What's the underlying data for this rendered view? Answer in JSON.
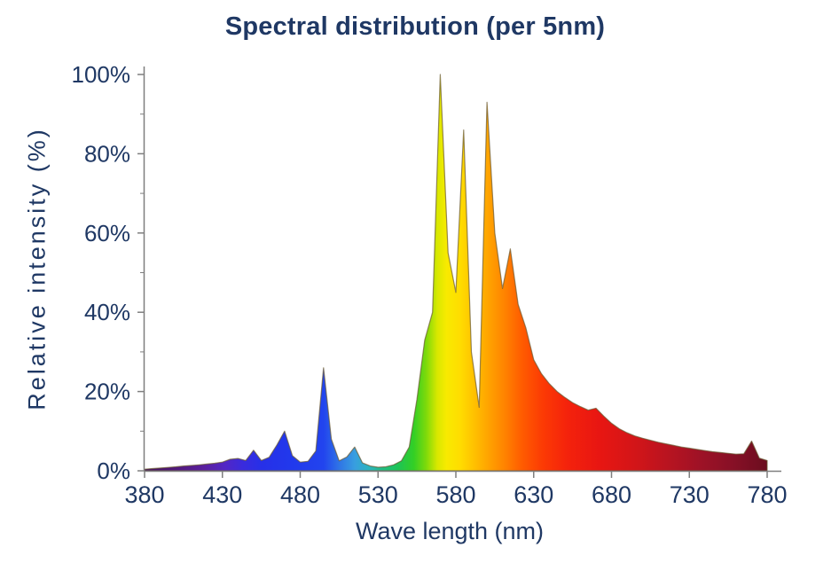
{
  "title": "Spectral distribution (per 5nm)",
  "x_axis": {
    "label": "Wave length (nm)",
    "ticks": [
      380,
      430,
      480,
      530,
      580,
      630,
      680,
      730,
      780
    ]
  },
  "y_axis": {
    "label": "Relative intensity (%)",
    "ticks": [
      "0%",
      "20%",
      "40%",
      "60%",
      "80%",
      "100%"
    ],
    "tick_values": [
      0,
      20,
      40,
      60,
      80,
      100
    ],
    "minor_ticks": [
      10,
      30,
      50,
      70,
      90
    ]
  },
  "colors": {
    "text": "#1F3864",
    "axis": "#7f7f7f",
    "outline": "rgba(105,88,48,0.7)"
  },
  "chart_data": {
    "type": "area",
    "title": "Spectral distribution (per 5nm)",
    "xlabel": "Wave length (nm)",
    "ylabel": "Relative intensity (%)",
    "xlim": [
      380,
      780
    ],
    "ylim": [
      0,
      100
    ],
    "grid": false,
    "legend": "none",
    "series_name": "Relative intensity per 5nm bin (%)",
    "x": [
      380,
      385,
      390,
      395,
      400,
      405,
      410,
      415,
      420,
      425,
      430,
      435,
      440,
      445,
      450,
      455,
      460,
      465,
      470,
      475,
      480,
      485,
      490,
      495,
      500,
      505,
      510,
      515,
      520,
      525,
      530,
      535,
      540,
      545,
      550,
      555,
      560,
      565,
      570,
      575,
      580,
      585,
      590,
      595,
      600,
      605,
      610,
      615,
      620,
      625,
      630,
      635,
      640,
      645,
      650,
      655,
      660,
      665,
      670,
      675,
      680,
      685,
      690,
      695,
      700,
      705,
      710,
      715,
      720,
      725,
      730,
      735,
      740,
      745,
      750,
      755,
      760,
      765,
      770,
      775,
      780
    ],
    "values": [
      0.4,
      0.55,
      0.7,
      0.85,
      1.0,
      1.2,
      1.35,
      1.5,
      1.7,
      1.9,
      2.2,
      2.9,
      3.1,
      2.6,
      5.2,
      2.6,
      3.4,
      6.5,
      10,
      3.8,
      2.2,
      2.4,
      5,
      26,
      8,
      2.5,
      3.5,
      6,
      2,
      1.2,
      0.9,
      1,
      1.5,
      2.5,
      6,
      18,
      33,
      40,
      100,
      55,
      45,
      86,
      30,
      16,
      93,
      60,
      46,
      56,
      42,
      36,
      28,
      24.5,
      22,
      20,
      18.5,
      17.2,
      16.2,
      15.3,
      15.8,
      13.8,
      12,
      10.6,
      9.6,
      8.8,
      8.2,
      7.7,
      7.2,
      6.8,
      6.4,
      6.0,
      5.7,
      5.4,
      5.1,
      4.8,
      4.6,
      4.4,
      4.2,
      4.3,
      7.5,
      3.2,
      2.6
    ],
    "peaks": [
      {
        "nm": 450,
        "pct": 5.2
      },
      {
        "nm": 470,
        "pct": 10
      },
      {
        "nm": 495,
        "pct": 26
      },
      {
        "nm": 515,
        "pct": 6
      },
      {
        "nm": 570,
        "pct": 100
      },
      {
        "nm": 585,
        "pct": 86
      },
      {
        "nm": 600,
        "pct": 93
      },
      {
        "nm": 615,
        "pct": 56
      },
      {
        "nm": 670,
        "pct": 15.8
      },
      {
        "nm": 770,
        "pct": 7.5
      }
    ],
    "gradient_stops": [
      {
        "nm": 380,
        "color": "#45125E"
      },
      {
        "nm": 400,
        "color": "#51187C"
      },
      {
        "nm": 418,
        "color": "#5A1F9E"
      },
      {
        "nm": 432,
        "color": "#5226C6"
      },
      {
        "nm": 443,
        "color": "#3A2BDD"
      },
      {
        "nm": 455,
        "color": "#2730E8"
      },
      {
        "nm": 475,
        "color": "#2139EC"
      },
      {
        "nm": 495,
        "color": "#2244EE"
      },
      {
        "nm": 505,
        "color": "#2F74E6"
      },
      {
        "nm": 515,
        "color": "#389EE0"
      },
      {
        "nm": 524,
        "color": "#2DB3C0"
      },
      {
        "nm": 533,
        "color": "#1FBE83"
      },
      {
        "nm": 543,
        "color": "#1EC455"
      },
      {
        "nm": 553,
        "color": "#33CF25"
      },
      {
        "nm": 561,
        "color": "#7FDA0A"
      },
      {
        "nm": 568,
        "color": "#D8E800"
      },
      {
        "nm": 574,
        "color": "#F8EA00"
      },
      {
        "nm": 583,
        "color": "#FFDC00"
      },
      {
        "nm": 592,
        "color": "#FFC000"
      },
      {
        "nm": 601,
        "color": "#FFA300"
      },
      {
        "nm": 611,
        "color": "#FF8400"
      },
      {
        "nm": 622,
        "color": "#FF5D00"
      },
      {
        "nm": 636,
        "color": "#FC3A04"
      },
      {
        "nm": 652,
        "color": "#F4220C"
      },
      {
        "nm": 672,
        "color": "#E81612"
      },
      {
        "nm": 695,
        "color": "#D31518"
      },
      {
        "nm": 715,
        "color": "#BA1420"
      },
      {
        "nm": 737,
        "color": "#9E1226"
      },
      {
        "nm": 758,
        "color": "#871026"
      },
      {
        "nm": 780,
        "color": "#6B0D1F"
      }
    ]
  }
}
